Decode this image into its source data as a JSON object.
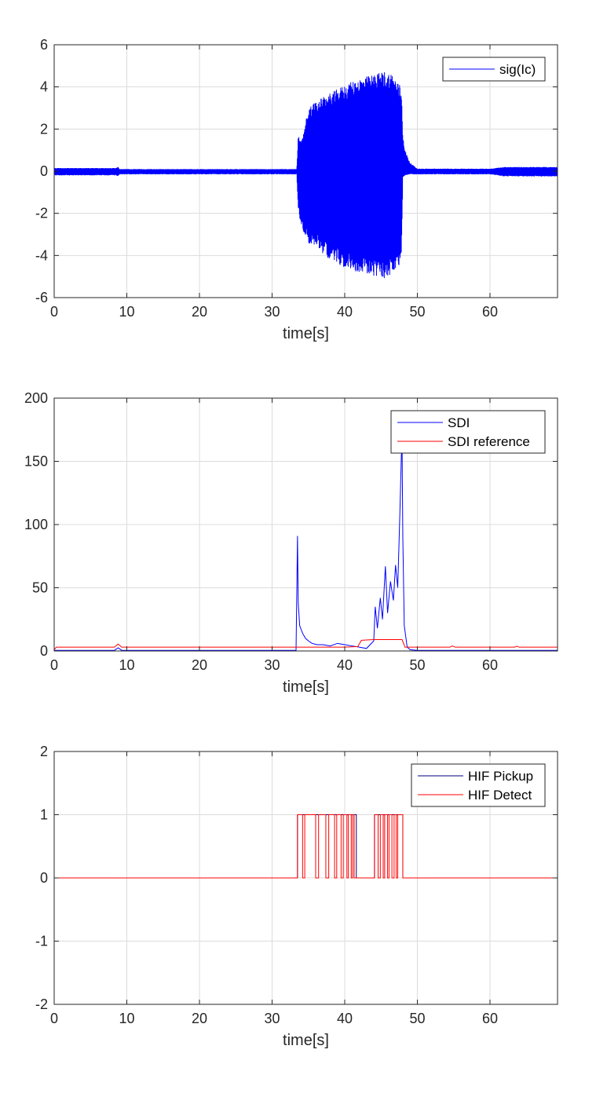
{
  "chart_data": [
    {
      "type": "line",
      "xlabel": "time[s]",
      "ylabel": "",
      "xlim": [
        0,
        69.3
      ],
      "ylim": [
        -6,
        6
      ],
      "xticks": [
        0,
        10,
        20,
        30,
        40,
        50,
        60
      ],
      "yticks": [
        -6,
        -4,
        -2,
        0,
        2,
        4,
        6
      ],
      "xtick_labels": [
        "0",
        "10",
        "20",
        "30",
        "40",
        "50",
        "60"
      ],
      "ytick_labels": [
        "-6",
        "-4",
        "-2",
        "0",
        "2",
        "4",
        "6"
      ],
      "grid": true,
      "legend_position": "top-right",
      "series": [
        {
          "name": "sig(Ic)",
          "color": "#0000ff",
          "style": "oscillating band",
          "envelope": {
            "x": [
              0,
              8.5,
              8.8,
              9.0,
              20,
              33.4,
              33.6,
              34.0,
              35,
              36,
              38,
              40,
              42,
              44,
              45.5,
              46.5,
              47.8,
              48.0,
              48.3,
              49,
              50,
              60,
              62,
              69.3
            ],
            "upper": [
              0.15,
              0.15,
              0.2,
              0.1,
              0.1,
              0.1,
              1.7,
              1.4,
              3.0,
              3.3,
              3.7,
              4.1,
              4.4,
              4.6,
              4.75,
              4.65,
              4.0,
              1.8,
              1.0,
              0.4,
              0.12,
              0.12,
              0.2,
              0.2
            ],
            "lower": [
              -0.2,
              -0.2,
              -0.25,
              -0.15,
              -0.15,
              -0.15,
              -1.8,
              -2.6,
              -3.4,
              -3.6,
              -4.2,
              -4.6,
              -4.8,
              -5.0,
              -5.1,
              -4.9,
              -4.6,
              -0.3,
              -0.2,
              -0.15,
              -0.15,
              -0.15,
              -0.25,
              -0.25
            ]
          }
        }
      ]
    },
    {
      "type": "line",
      "xlabel": "time[s]",
      "ylabel": "",
      "xlim": [
        0,
        69.3
      ],
      "ylim": [
        0,
        200
      ],
      "xticks": [
        0,
        10,
        20,
        30,
        40,
        50,
        60
      ],
      "yticks": [
        0,
        50,
        100,
        150,
        200
      ],
      "xtick_labels": [
        "0",
        "10",
        "20",
        "30",
        "40",
        "50",
        "60"
      ],
      "ytick_labels": [
        "0",
        "50",
        "100",
        "150",
        "200"
      ],
      "grid": true,
      "legend_position": "top-right",
      "series": [
        {
          "name": "SDI",
          "color": "#0000ff",
          "x": [
            0,
            8.3,
            8.8,
            9.3,
            33.3,
            33.5,
            33.6,
            33.8,
            34.2,
            34.6,
            35.0,
            35.5,
            36.2,
            37.0,
            38.0,
            39.0,
            40.0,
            41.0,
            42.0,
            43.0,
            44.0,
            44.2,
            44.5,
            44.9,
            45.2,
            45.6,
            45.9,
            46.3,
            46.7,
            47.0,
            47.3,
            47.6,
            47.8,
            47.9,
            48.0,
            48.2,
            48.6,
            49.0,
            50,
            69.3
          ],
          "y": [
            0.5,
            0.5,
            2.5,
            0.5,
            0.5,
            91,
            38,
            20,
            14,
            10,
            8,
            6,
            5,
            5,
            4,
            6,
            5,
            4,
            3,
            2,
            8,
            35,
            18,
            42,
            25,
            67,
            30,
            55,
            40,
            68,
            50,
            110,
            155,
            160,
            90,
            20,
            3,
            1,
            0.5,
            0.5
          ]
        },
        {
          "name": "SDI reference",
          "color": "#ff0000",
          "x": [
            0,
            0.3,
            8.3,
            8.8,
            9.3,
            33.3,
            40,
            41.8,
            42.3,
            44.0,
            47.9,
            48.3,
            50,
            54.5,
            54.8,
            55.2,
            63.4,
            63.7,
            64.0,
            69.3
          ],
          "y": [
            1,
            3,
            3,
            5.5,
            3,
            3,
            3,
            3.5,
            8.5,
            9,
            9,
            3,
            3,
            3,
            4,
            3,
            3,
            3.8,
            3,
            3
          ]
        }
      ]
    },
    {
      "type": "line",
      "xlabel": "time[s]",
      "ylabel": "",
      "xlim": [
        0,
        69.3
      ],
      "ylim": [
        -2,
        2
      ],
      "xticks": [
        0,
        10,
        20,
        30,
        40,
        50,
        60
      ],
      "yticks": [
        -2,
        -1,
        0,
        1,
        2
      ],
      "xtick_labels": [
        "0",
        "10",
        "20",
        "30",
        "40",
        "50",
        "60"
      ],
      "ytick_labels": [
        "-2",
        "-1",
        "0",
        "1",
        "2"
      ],
      "grid": true,
      "legend_position": "top-right",
      "series": [
        {
          "name": "HIF Pickup",
          "color": "#000080",
          "high_intervals": [
            [
              33.5,
              41.6
            ],
            [
              44.1,
              48.0
            ]
          ]
        },
        {
          "name": "HIF Detect",
          "color": "#ff0000",
          "high_intervals": [
            [
              33.5,
              34.2
            ],
            [
              34.5,
              36.0
            ],
            [
              36.4,
              37.4
            ],
            [
              37.8,
              38.6
            ],
            [
              38.9,
              39.5
            ],
            [
              39.8,
              40.3
            ],
            [
              40.5,
              40.9
            ],
            [
              41.1,
              41.3
            ],
            [
              44.1,
              44.6
            ],
            [
              44.9,
              45.3
            ],
            [
              45.5,
              45.9
            ],
            [
              46.1,
              46.5
            ],
            [
              46.8,
              47.1
            ],
            [
              47.3,
              48.0
            ]
          ]
        }
      ]
    }
  ]
}
